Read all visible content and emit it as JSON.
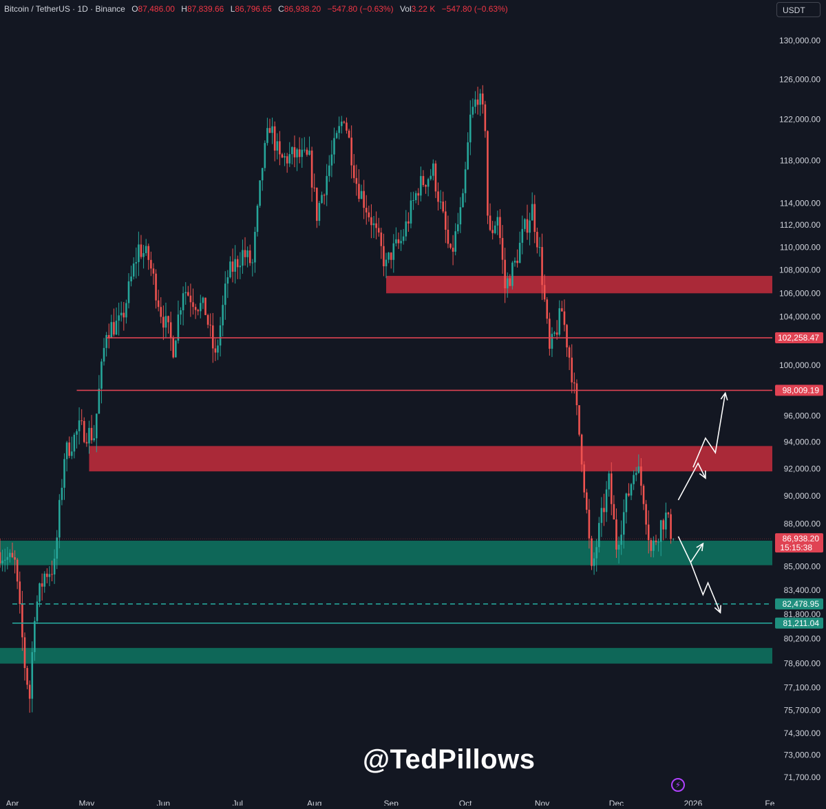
{
  "header": {
    "symbol": "Bitcoin / TetherUS · 1D · Binance",
    "open_label": "O",
    "open": "87,486.00",
    "high_label": "H",
    "high": "87,839.66",
    "low_label": "L",
    "low": "86,796.65",
    "close_label": "C",
    "close": "86,938.20",
    "change": "−547.80 (−0.63%)",
    "vol_label": "Vol",
    "vol": "3.22 K",
    "vol_change": "−547.80 (−0.63%)"
  },
  "currency": "USDT",
  "watermark": "@TedPillows",
  "colors": {
    "background": "#131722",
    "up": "#26a69a",
    "down": "#ef5350",
    "resistance_zone": "#b22a3a",
    "support_zone": "#0e6b5c",
    "resistance_line": "#e04353",
    "support_line": "#26a69a",
    "axis_text": "#d1d4dc",
    "arrow": "#ffffff"
  },
  "chart_data": {
    "type": "candlestick",
    "symbol": "BTCUSDT",
    "timeframe": "1D",
    "y_axis": {
      "ticks": [
        130000,
        126000,
        122000,
        118000,
        114000,
        112000,
        110000,
        108000,
        106000,
        104000,
        100000,
        96000,
        94000,
        92000,
        90000,
        88000,
        85000,
        83400,
        81800,
        80200,
        78600,
        77100,
        75700,
        74300,
        73000,
        71700
      ],
      "tick_labels": [
        "130,000.00",
        "126,000.00",
        "122,000.00",
        "118,000.00",
        "114,000.00",
        "112,000.00",
        "110,000.00",
        "108,000.00",
        "106,000.00",
        "104,000.00",
        "100,000.00",
        "96,000.00",
        "94,000.00",
        "92,000.00",
        "90,000.00",
        "88,000.00",
        "85,000.00",
        "83,400.00",
        "81,800.00",
        "80,200.00",
        "78,600.00",
        "77,100.00",
        "75,700.00",
        "74,300.00",
        "73,000.00",
        "71,700.00"
      ],
      "scale": "log"
    },
    "x_axis": {
      "start": "2025-03-27",
      "end": "2026-02-07",
      "ticks": [
        {
          "date": "2025-04-01",
          "label": "Apr"
        },
        {
          "date": "2025-05-01",
          "label": "May"
        },
        {
          "date": "2025-06-01",
          "label": "Jun"
        },
        {
          "date": "2025-07-01",
          "label": "Jul"
        },
        {
          "date": "2025-08-01",
          "label": "Aug"
        },
        {
          "date": "2025-09-01",
          "label": "Sep"
        },
        {
          "date": "2025-10-01",
          "label": "Oct"
        },
        {
          "date": "2025-11-01",
          "label": "Nov"
        },
        {
          "date": "2025-12-01",
          "label": "Dec"
        },
        {
          "date": "2026-01-01",
          "label": "2026"
        },
        {
          "date": "2026-02-01",
          "label": "Fe"
        }
      ]
    },
    "price_path": [
      [
        "2025-03-27",
        86000
      ],
      [
        "2025-04-02",
        85200
      ],
      [
        "2025-04-06",
        78500
      ],
      [
        "2025-04-08",
        76500
      ],
      [
        "2025-04-10",
        82000
      ],
      [
        "2025-04-14",
        84500
      ],
      [
        "2025-04-18",
        85000
      ],
      [
        "2025-04-22",
        93000
      ],
      [
        "2025-04-28",
        95000
      ],
      [
        "2025-05-04",
        94500
      ],
      [
        "2025-05-09",
        103000
      ],
      [
        "2025-05-15",
        103500
      ],
      [
        "2025-05-22",
        110000
      ],
      [
        "2025-05-26",
        109000
      ],
      [
        "2025-05-31",
        104500
      ],
      [
        "2025-06-05",
        101500
      ],
      [
        "2025-06-09",
        106500
      ],
      [
        "2025-06-13",
        105500
      ],
      [
        "2025-06-18",
        104500
      ],
      [
        "2025-06-22",
        100500
      ],
      [
        "2025-06-27",
        107500
      ],
      [
        "2025-07-03",
        109500
      ],
      [
        "2025-07-07",
        108500
      ],
      [
        "2025-07-11",
        117500
      ],
      [
        "2025-07-14",
        121500
      ],
      [
        "2025-07-18",
        118000
      ],
      [
        "2025-07-24",
        118500
      ],
      [
        "2025-07-30",
        118000
      ],
      [
        "2025-08-02",
        113000
      ],
      [
        "2025-08-07",
        117500
      ],
      [
        "2025-08-13",
        122500
      ],
      [
        "2025-08-18",
        116000
      ],
      [
        "2025-08-24",
        112500
      ],
      [
        "2025-08-30",
        108300
      ],
      [
        "2025-09-01",
        109500
      ],
      [
        "2025-09-05",
        110500
      ],
      [
        "2025-09-12",
        115500
      ],
      [
        "2025-09-18",
        117000
      ],
      [
        "2025-09-22",
        112500
      ],
      [
        "2025-09-25",
        109000
      ],
      [
        "2025-09-30",
        114000
      ],
      [
        "2025-10-03",
        122000
      ],
      [
        "2025-10-06",
        124500
      ],
      [
        "2025-10-09",
        121500
      ],
      [
        "2025-10-10",
        113000
      ],
      [
        "2025-10-11",
        111000
      ],
      [
        "2025-10-14",
        113000
      ],
      [
        "2025-10-17",
        106500
      ],
      [
        "2025-10-21",
        108500
      ],
      [
        "2025-10-24",
        111000
      ],
      [
        "2025-10-28",
        113500
      ],
      [
        "2025-10-31",
        109500
      ],
      [
        "2025-11-04",
        101000
      ],
      [
        "2025-11-09",
        104500
      ],
      [
        "2025-11-13",
        99500
      ],
      [
        "2025-11-17",
        93000
      ],
      [
        "2025-11-21",
        84500
      ],
      [
        "2025-11-24",
        87500
      ],
      [
        "2025-11-28",
        91000
      ],
      [
        "2025-12-01",
        86500
      ],
      [
        "2025-12-05",
        89500
      ],
      [
        "2025-12-09",
        92500
      ],
      [
        "2025-12-12",
        90000
      ],
      [
        "2025-12-15",
        86000
      ],
      [
        "2025-12-19",
        88000
      ],
      [
        "2025-12-21",
        88500
      ],
      [
        "2025-12-24",
        86938
      ]
    ],
    "zones": [
      {
        "kind": "resistance",
        "start": "2025-08-30",
        "low": 106000,
        "high": 107500
      },
      {
        "kind": "resistance",
        "start": "2025-05-02",
        "low": 91800,
        "high": 93700
      },
      {
        "kind": "support",
        "start": "2025-03-27",
        "low": 85100,
        "high": 86800
      },
      {
        "kind": "support",
        "start": "2025-03-27",
        "low": 78600,
        "high": 79600
      }
    ],
    "levels": [
      {
        "value": 102258.47,
        "label": "102,258.47",
        "kind": "resistance",
        "style": "solid",
        "start": "2025-05-09"
      },
      {
        "value": 98009.19,
        "label": "98,009.19",
        "kind": "resistance",
        "style": "solid",
        "start": "2025-04-27"
      },
      {
        "value": 82478.95,
        "label": "82,478.95",
        "kind": "support",
        "style": "dashed",
        "start": "2025-04-01"
      },
      {
        "value": 81211.04,
        "label": "81,211.04",
        "kind": "support",
        "style": "solid",
        "start": "2025-04-01"
      }
    ],
    "last_price": {
      "value": 86938.2,
      "label": "86,938.20",
      "countdown": "15:15:38"
    },
    "projection_arrows": [
      {
        "points": [
          [
            "2025-12-26",
            89700
          ],
          [
            "2026-01-03",
            92400
          ],
          [
            "2026-01-06",
            91300
          ]
        ]
      },
      {
        "points": [
          [
            "2026-01-01",
            92100
          ],
          [
            "2026-01-06",
            94300
          ],
          [
            "2026-01-10",
            93200
          ],
          [
            "2026-01-14",
            97800
          ]
        ]
      },
      {
        "points": [
          [
            "2025-12-26",
            87100
          ],
          [
            "2025-12-31",
            85300
          ],
          [
            "2026-01-05",
            86600
          ]
        ]
      },
      {
        "points": [
          [
            "2025-12-31",
            85300
          ],
          [
            "2026-01-05",
            83100
          ],
          [
            "2026-01-07",
            83900
          ],
          [
            "2026-01-12",
            81900
          ]
        ]
      }
    ]
  }
}
